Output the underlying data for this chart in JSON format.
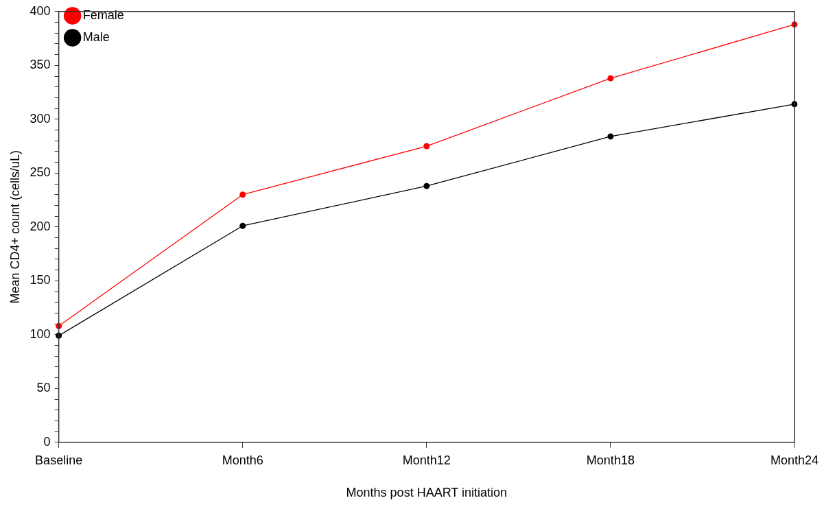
{
  "chart_data": {
    "type": "line",
    "xlabel": "Months post HAART initiation",
    "ylabel": "Mean CD4+ count (cells/uL)",
    "categories": [
      "Baseline",
      "Month6",
      "Month12",
      "Month18",
      "Month24"
    ],
    "series": [
      {
        "name": "Female",
        "color": "#ff0000",
        "values": [
          108,
          230,
          275,
          338,
          388
        ]
      },
      {
        "name": "Male",
        "color": "#000000",
        "values": [
          99,
          201,
          238,
          284,
          314
        ]
      }
    ],
    "ylim": [
      0,
      400
    ],
    "yticks": [
      0,
      {
        "value": 10,
        "label": null
      },
      {
        "value": 20,
        "label": null
      },
      {
        "value": 30,
        "label": null
      },
      {
        "value": 40,
        "label": null
      },
      50,
      {
        "value": 60,
        "label": null
      },
      {
        "value": 70,
        "label": null
      },
      {
        "value": 80,
        "label": null
      },
      {
        "value": 90,
        "label": null
      },
      100,
      {
        "value": 110,
        "label": null
      },
      {
        "value": 120,
        "label": null
      },
      {
        "value": 130,
        "label": null
      },
      {
        "value": 140,
        "label": null
      },
      150,
      {
        "value": 160,
        "label": null
      },
      {
        "value": 170,
        "label": null
      },
      {
        "value": 180,
        "label": null
      },
      {
        "value": 190,
        "label": null
      },
      200,
      {
        "value": 210,
        "label": null
      },
      {
        "value": 220,
        "label": null
      },
      {
        "value": 230,
        "label": null
      },
      {
        "value": 240,
        "label": null
      },
      250,
      {
        "value": 260,
        "label": null
      },
      {
        "value": 270,
        "label": null
      },
      {
        "value": 280,
        "label": null
      },
      {
        "value": 290,
        "label": null
      },
      300,
      {
        "value": 310,
        "label": null
      },
      {
        "value": 320,
        "label": null
      },
      {
        "value": 330,
        "label": null
      },
      {
        "value": 340,
        "label": null
      },
      350,
      {
        "value": 360,
        "label": null
      },
      {
        "value": 370,
        "label": null
      },
      {
        "value": 380,
        "label": null
      },
      {
        "value": 390,
        "label": null
      },
      400
    ],
    "grid": false,
    "legend": "top left",
    "marker": "circle",
    "line_style": "solid"
  }
}
